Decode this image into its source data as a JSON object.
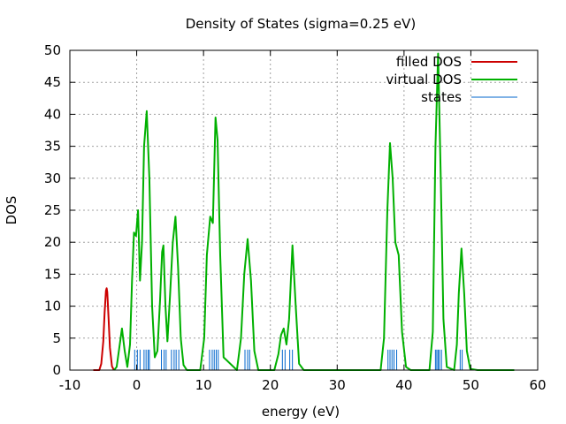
{
  "chart_data": {
    "type": "line",
    "title": "Density of States (sigma=0.25 eV)",
    "xlabel": "energy (eV)",
    "ylabel": "DOS",
    "xlim": [
      -10,
      60
    ],
    "ylim": [
      0,
      50
    ],
    "xticks": [
      -10,
      0,
      10,
      20,
      30,
      40,
      50,
      60
    ],
    "yticks": [
      0,
      5,
      10,
      15,
      20,
      25,
      30,
      35,
      40,
      45,
      50
    ],
    "grid": true,
    "legend_position": "top-right",
    "series": [
      {
        "name": "filled DOS",
        "color": "#cc0000",
        "peaks": [
          {
            "x": -4.5,
            "height": 12.8
          }
        ],
        "x": [
          -6.5,
          -5.6,
          -5.3,
          -5.0,
          -4.8,
          -4.6,
          -4.5,
          -4.4,
          -4.2,
          -4.0,
          -3.7,
          -3.4
        ],
        "y": [
          0,
          0,
          1.0,
          4.5,
          9.0,
          12.4,
          12.8,
          12.2,
          8.0,
          3.5,
          0.6,
          0
        ]
      },
      {
        "name": "virtual DOS",
        "color": "#00b000",
        "peaks": [
          {
            "x": -2.2,
            "height": 6.5
          },
          {
            "x": -0.4,
            "height": 21.5
          },
          {
            "x": 0.2,
            "height": 25.0
          },
          {
            "x": 1.5,
            "height": 40.5
          },
          {
            "x": 4.0,
            "height": 19.5
          },
          {
            "x": 5.8,
            "height": 24.0
          },
          {
            "x": 11.0,
            "height": 24.0
          },
          {
            "x": 11.8,
            "height": 39.5
          },
          {
            "x": 16.6,
            "height": 20.5
          },
          {
            "x": 22.0,
            "height": 6.5
          },
          {
            "x": 23.3,
            "height": 19.5
          },
          {
            "x": 37.9,
            "height": 35.5
          },
          {
            "x": 45.1,
            "height": 49.5
          },
          {
            "x": 48.6,
            "height": 19.0
          }
        ],
        "x": [
          -3.4,
          -3.0,
          -2.6,
          -2.2,
          -1.8,
          -1.4,
          -1.0,
          -0.7,
          -0.4,
          -0.1,
          0.2,
          0.5,
          0.8,
          1.1,
          1.5,
          1.9,
          2.3,
          2.7,
          3.1,
          3.5,
          3.8,
          4.0,
          4.3,
          4.6,
          5.0,
          5.4,
          5.8,
          6.2,
          6.6,
          7.0,
          7.5,
          9.5,
          10.1,
          10.5,
          11.0,
          11.4,
          11.8,
          12.1,
          12.5,
          13.0,
          15.0,
          15.6,
          16.1,
          16.6,
          17.1,
          17.6,
          18.2,
          20.6,
          21.2,
          21.6,
          22.0,
          22.4,
          22.8,
          23.3,
          23.8,
          24.3,
          25.0,
          36.5,
          37.0,
          37.5,
          37.9,
          38.3,
          38.7,
          39.2,
          39.7,
          40.3,
          41.0,
          43.8,
          44.3,
          44.7,
          45.1,
          45.5,
          45.9,
          46.4,
          47.5,
          47.9,
          48.2,
          48.6,
          49.0,
          49.4,
          49.9,
          51.0,
          56.5
        ],
        "y": [
          0,
          0.5,
          3.5,
          6.5,
          3.0,
          0.5,
          4.0,
          14.0,
          21.5,
          21.0,
          25.0,
          14.0,
          20.0,
          35.0,
          40.5,
          30.0,
          10.0,
          2.0,
          3.0,
          11.0,
          18.5,
          19.5,
          10.0,
          4.5,
          12.0,
          20.0,
          24.0,
          16.0,
          5.0,
          0.8,
          0,
          0,
          5.0,
          18.0,
          24.0,
          23.0,
          39.5,
          36.0,
          18.0,
          2.0,
          0,
          5.0,
          15.0,
          20.5,
          14.0,
          3.0,
          0,
          0,
          2.5,
          5.5,
          6.5,
          4.0,
          8.0,
          19.5,
          10.0,
          1.0,
          0,
          0,
          5.0,
          25.0,
          35.5,
          30.0,
          20.0,
          18.0,
          6.0,
          0.5,
          0,
          0,
          6.0,
          35.0,
          49.5,
          30.0,
          8.0,
          0.5,
          0,
          4.0,
          12.0,
          19.0,
          12.0,
          3.0,
          0.2,
          0,
          0
        ]
      },
      {
        "name": "states",
        "color": "#0066cc",
        "stick_height": 3.2,
        "x": [
          -0.3,
          0.1,
          0.5,
          1.1,
          1.4,
          1.7,
          1.9,
          3.7,
          4.1,
          4.4,
          5.2,
          5.6,
          5.9,
          6.3,
          10.9,
          11.3,
          11.6,
          11.9,
          12.2,
          16.2,
          16.6,
          16.9,
          21.8,
          22.2,
          22.9,
          23.3,
          37.6,
          37.9,
          38.2,
          38.5,
          38.9,
          44.7,
          44.9,
          45.1,
          45.3,
          45.6,
          48.4,
          48.7
        ]
      }
    ]
  }
}
